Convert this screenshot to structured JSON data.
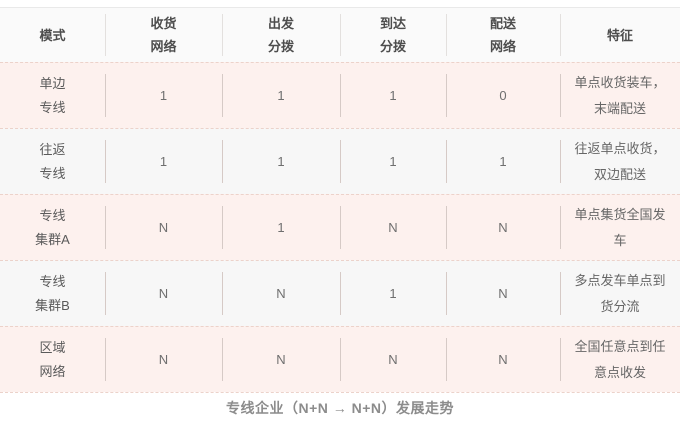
{
  "colors": {
    "row_pink": "#fdf1ee",
    "row_gray": "#f7f7f7",
    "dashed_separator": "#ecd2ca",
    "header_text": "#4d4d4d",
    "body_text": "#666666",
    "caption_text": "#8c8c8c"
  },
  "table": {
    "headers": [
      [
        "模式"
      ],
      [
        "收货",
        "网络"
      ],
      [
        "出发",
        "分拨"
      ],
      [
        "到达",
        "分拨"
      ],
      [
        "配送",
        "网络"
      ],
      [
        "特征"
      ]
    ],
    "rows": [
      {
        "mode": [
          "单边",
          "专线"
        ],
        "values": [
          "1",
          "1",
          "1",
          "0"
        ],
        "feature": "单点收货装车，末端配送"
      },
      {
        "mode": [
          "往返",
          "专线"
        ],
        "values": [
          "1",
          "1",
          "1",
          "1"
        ],
        "feature": "往返单点收货，双边配送"
      },
      {
        "mode": [
          "专线",
          "集群A"
        ],
        "values": [
          "N",
          "1",
          "N",
          "N"
        ],
        "feature": "单点集货全国发车"
      },
      {
        "mode": [
          "专线",
          "集群B"
        ],
        "values": [
          "N",
          "N",
          "1",
          "N"
        ],
        "feature": "多点发车单点到货分流"
      },
      {
        "mode": [
          "区域",
          "网络"
        ],
        "values": [
          "N",
          "N",
          "N",
          "N"
        ],
        "feature": "全国任意点到任意点收发"
      }
    ]
  },
  "caption": "专线企业（N+N → N+N）发展走势",
  "chart_data": {
    "type": "table",
    "columns": [
      "模式",
      "收货网络",
      "出发分拨",
      "到达分拨",
      "配送网络",
      "特征"
    ],
    "rows": [
      [
        "单边专线",
        "1",
        "1",
        "1",
        "0",
        "单点收货装车，末端配送"
      ],
      [
        "往返专线",
        "1",
        "1",
        "1",
        "1",
        "往返单点收货，双边配送"
      ],
      [
        "专线集群A",
        "N",
        "1",
        "N",
        "N",
        "单点集货全国发车"
      ],
      [
        "专线集群B",
        "N",
        "N",
        "1",
        "N",
        "多点发车单点到货分流"
      ],
      [
        "区域网络",
        "N",
        "N",
        "N",
        "N",
        "全国任意点到任意点收发"
      ]
    ],
    "title": "专线企业（N+N → N+N）发展走势",
    "layout": "zebra rows pink/gray, dashed pink horizontal separators, short vertical column dividers, bold caption centered below"
  }
}
